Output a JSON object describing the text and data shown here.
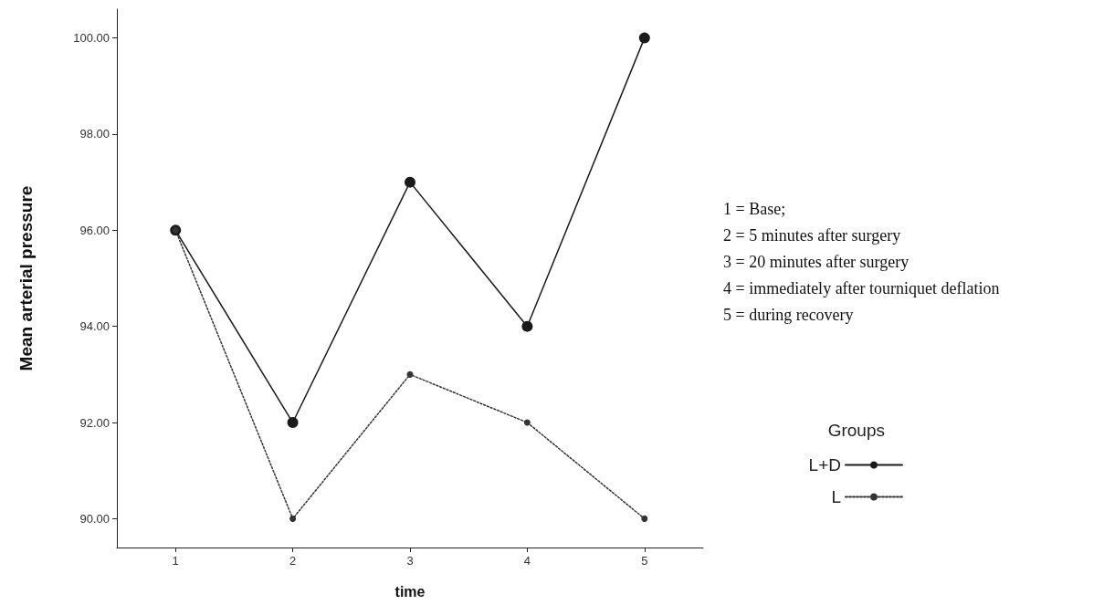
{
  "chart_data": {
    "type": "line",
    "xlabel": "time",
    "ylabel": "Mean arterial pressure",
    "legend_title": "Groups",
    "categories": [
      "1",
      "2",
      "3",
      "4",
      "5"
    ],
    "series": [
      {
        "name": "L+D",
        "color": "#1a1a1a",
        "values": [
          96,
          92,
          97,
          94,
          100
        ],
        "line_style": "solid"
      },
      {
        "name": "L",
        "color": "#333333",
        "values": [
          96,
          90,
          93,
          92,
          90
        ],
        "line_style": "dotted"
      }
    ],
    "ylim": [
      89.4,
      100.6
    ],
    "yticks": [
      {
        "value": 90,
        "label": "90.00"
      },
      {
        "value": 92,
        "label": "92.00"
      },
      {
        "value": 94,
        "label": "94.00"
      },
      {
        "value": 96,
        "label": "96.00"
      },
      {
        "value": 98,
        "label": "98.00"
      },
      {
        "value": 100,
        "label": "100.00"
      }
    ],
    "grid": false,
    "legend": "right",
    "marker": "circle",
    "annotations": [
      "1 = Base;",
      "2 = 5 minutes after surgery",
      "3 = 20 minutes after surgery",
      "4 = immediately after tourniquet deflation",
      "5 = during recovery"
    ]
  }
}
